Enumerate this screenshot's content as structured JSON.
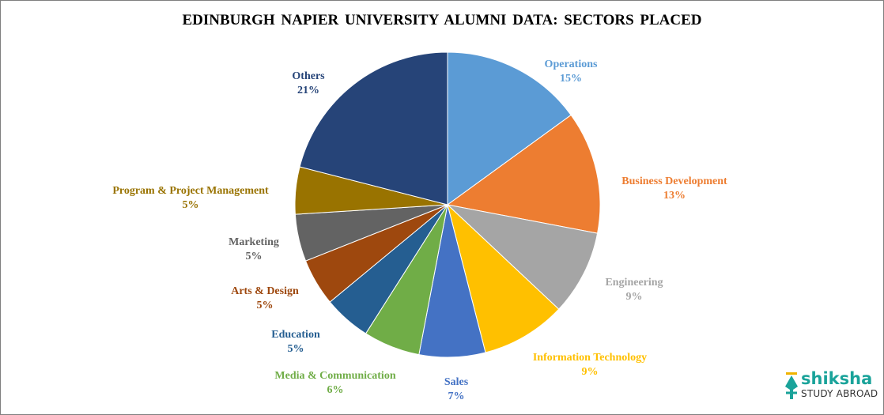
{
  "chart_data": {
    "type": "pie",
    "title": "EDINBURGH NAPIER UNIVERSITY ALUMNI DATA: SECTORS PLACED",
    "start": "top, clockwise",
    "slices": [
      {
        "label": "Operations",
        "value": 15,
        "display": "15%",
        "color": "#5b9bd5"
      },
      {
        "label": "Business Development",
        "value": 13,
        "display": "13%",
        "color": "#ed7d31"
      },
      {
        "label": "Engineering",
        "value": 9,
        "display": "9%",
        "color": "#a5a5a5"
      },
      {
        "label": "Information Technology",
        "value": 9,
        "display": "9%",
        "color": "#ffc000"
      },
      {
        "label": "Sales",
        "value": 7,
        "display": "7%",
        "color": "#4472c4"
      },
      {
        "label": "Media & Communication",
        "value": 6,
        "display": "6%",
        "color": "#70ad47"
      },
      {
        "label": "Education",
        "value": 5,
        "display": "5%",
        "color": "#255e91"
      },
      {
        "label": "Arts & Design",
        "value": 5,
        "display": "5%",
        "color": "#9e480e"
      },
      {
        "label": "Marketing",
        "value": 5,
        "display": "5%",
        "color": "#636363"
      },
      {
        "label": "Program  & Project  Management",
        "value": 5,
        "display": "5%",
        "color": "#997300"
      },
      {
        "label": "Others",
        "value": 21,
        "display": "21%",
        "color": "#264478"
      }
    ],
    "legend": "none (data labels outside slices)"
  },
  "logo": {
    "brand": "shiksha",
    "tagline": "STUDY ABROAD"
  }
}
